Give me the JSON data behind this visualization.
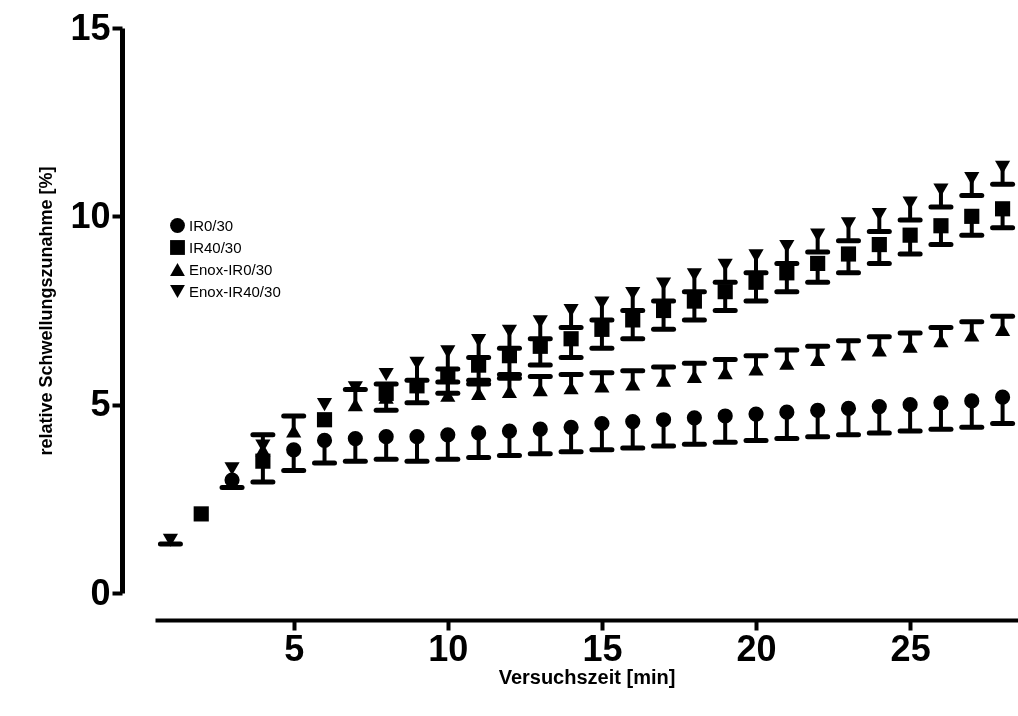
{
  "chart_data": {
    "type": "scatter",
    "xlabel": "Versuchszeit [min]",
    "ylabel": "relative Schwellungszunahme [%]",
    "x": [
      1,
      2,
      3,
      4,
      5,
      6,
      7,
      8,
      9,
      10,
      11,
      12,
      13,
      14,
      15,
      16,
      17,
      18,
      19,
      20,
      21,
      22,
      23,
      24,
      25,
      26,
      27,
      28
    ],
    "xlim": [
      0.5,
      28.5
    ],
    "xticks": [
      5,
      10,
      15,
      20,
      25
    ],
    "ylim": [
      0,
      15
    ],
    "yticks": [
      0,
      5,
      10,
      15
    ],
    "grid": false,
    "legend": "top left",
    "series": [
      {
        "name": "IR0/30",
        "color": "#000000",
        "marker": "circle",
        "values": [
          null,
          null,
          3.0,
          null,
          3.8,
          4.05,
          4.1,
          4.15,
          4.15,
          4.2,
          4.25,
          4.3,
          4.35,
          4.4,
          4.5,
          4.55,
          4.6,
          4.65,
          4.7,
          4.75,
          4.8,
          4.85,
          4.9,
          4.95,
          5.0,
          5.05,
          5.1,
          5.2
        ],
        "errors": [
          null,
          null,
          [
            2.8,
            3.0
          ],
          null,
          [
            3.25,
            3.8
          ],
          [
            3.45,
            4.05
          ],
          [
            3.5,
            4.1
          ],
          [
            3.55,
            4.15
          ],
          [
            3.5,
            4.15
          ],
          [
            3.55,
            4.2
          ],
          [
            3.6,
            4.25
          ],
          [
            3.65,
            4.3
          ],
          [
            3.7,
            4.35
          ],
          [
            3.75,
            4.4
          ],
          [
            3.8,
            4.5
          ],
          [
            3.85,
            4.55
          ],
          [
            3.9,
            4.6
          ],
          [
            3.95,
            4.65
          ],
          [
            4.0,
            4.7
          ],
          [
            4.05,
            4.75
          ],
          [
            4.1,
            4.8
          ],
          [
            4.15,
            4.85
          ],
          [
            4.2,
            4.9
          ],
          [
            4.25,
            4.95
          ],
          [
            4.3,
            5.0
          ],
          [
            4.35,
            5.05
          ],
          [
            4.4,
            5.1
          ],
          [
            4.5,
            5.2
          ]
        ]
      },
      {
        "name": "IR40/30",
        "color": "#000000",
        "marker": "square",
        "values": [
          null,
          2.1,
          null,
          3.5,
          null,
          4.6,
          null,
          5.3,
          5.5,
          5.75,
          6.05,
          6.3,
          6.55,
          6.75,
          7.0,
          7.25,
          7.5,
          7.75,
          8.0,
          8.25,
          8.5,
          8.75,
          9.0,
          9.25,
          9.5,
          9.75,
          10.0,
          10.2
        ],
        "errors": [
          null,
          null,
          null,
          [
            2.95,
            3.5
          ],
          null,
          null,
          null,
          [
            4.85,
            5.3
          ],
          [
            5.05,
            5.5
          ],
          [
            5.3,
            5.75
          ],
          [
            5.55,
            6.05
          ],
          [
            5.8,
            6.3
          ],
          [
            6.05,
            6.55
          ],
          [
            6.25,
            6.75
          ],
          [
            6.5,
            7.0
          ],
          [
            6.75,
            7.25
          ],
          [
            7.0,
            7.5
          ],
          [
            7.25,
            7.75
          ],
          [
            7.5,
            8.0
          ],
          [
            7.75,
            8.25
          ],
          [
            8.0,
            8.5
          ],
          [
            8.25,
            8.75
          ],
          [
            8.5,
            9.0
          ],
          [
            8.75,
            9.25
          ],
          [
            9.0,
            9.5
          ],
          [
            9.25,
            9.75
          ],
          [
            9.5,
            10.0
          ],
          [
            9.7,
            10.2
          ]
        ]
      },
      {
        "name": "Enox-IR0/30",
        "color": "#000000",
        "marker": "triangle",
        "values": [
          null,
          null,
          null,
          3.8,
          4.3,
          null,
          5.0,
          5.2,
          null,
          5.25,
          5.3,
          5.35,
          5.4,
          5.45,
          5.5,
          5.55,
          5.65,
          5.75,
          5.85,
          5.95,
          6.1,
          6.2,
          6.35,
          6.45,
          6.55,
          6.7,
          6.85,
          7.0
        ],
        "errors": [
          null,
          null,
          null,
          [
            3.8,
            4.2
          ],
          [
            4.3,
            4.7
          ],
          null,
          [
            5.0,
            5.4
          ],
          [
            5.2,
            5.55
          ],
          null,
          [
            5.25,
            5.6
          ],
          [
            5.3,
            5.65
          ],
          [
            5.35,
            5.7
          ],
          [
            5.4,
            5.75
          ],
          [
            5.45,
            5.8
          ],
          [
            5.5,
            5.85
          ],
          [
            5.55,
            5.9
          ],
          [
            5.65,
            6.0
          ],
          [
            5.75,
            6.1
          ],
          [
            5.85,
            6.2
          ],
          [
            5.95,
            6.3
          ],
          [
            6.1,
            6.45
          ],
          [
            6.2,
            6.55
          ],
          [
            6.35,
            6.7
          ],
          [
            6.45,
            6.8
          ],
          [
            6.55,
            6.9
          ],
          [
            6.7,
            7.05
          ],
          [
            6.85,
            7.2
          ],
          [
            7.0,
            7.35
          ]
        ]
      },
      {
        "name": "Enox-IR40/30",
        "color": "#000000",
        "marker": "triangle-down",
        "values": [
          1.4,
          null,
          3.3,
          3.9,
          null,
          5.0,
          5.45,
          5.8,
          6.1,
          6.4,
          6.7,
          6.95,
          7.2,
          7.5,
          7.7,
          7.95,
          8.2,
          8.45,
          8.7,
          8.95,
          9.2,
          9.5,
          9.8,
          10.05,
          10.35,
          10.7,
          11.0,
          11.3
        ],
        "errors": [
          [
            1.3,
            1.4
          ],
          null,
          null,
          null,
          null,
          null,
          null,
          null,
          [
            5.65,
            6.1
          ],
          [
            5.95,
            6.4
          ],
          [
            6.25,
            6.7
          ],
          [
            6.5,
            6.95
          ],
          [
            6.75,
            7.2
          ],
          [
            7.05,
            7.5
          ],
          [
            7.25,
            7.7
          ],
          [
            7.5,
            7.95
          ],
          [
            7.75,
            8.2
          ],
          [
            8.0,
            8.45
          ],
          [
            8.25,
            8.7
          ],
          [
            8.5,
            8.95
          ],
          [
            8.75,
            9.2
          ],
          [
            9.05,
            9.5
          ],
          [
            9.35,
            9.8
          ],
          [
            9.6,
            10.05
          ],
          [
            9.9,
            10.35
          ],
          [
            10.25,
            10.7
          ],
          [
            10.55,
            11.0
          ],
          [
            10.85,
            11.3
          ]
        ]
      }
    ]
  }
}
